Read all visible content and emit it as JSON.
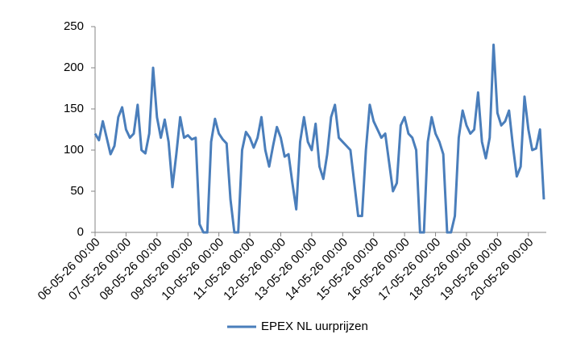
{
  "chart_data": {
    "type": "line",
    "categories": [
      "06-05-26 00:00",
      null,
      null,
      null,
      null,
      null,
      null,
      null,
      "07-05-26 00:00",
      null,
      null,
      null,
      null,
      null,
      null,
      null,
      "08-05-26 00:00",
      null,
      null,
      null,
      null,
      null,
      null,
      null,
      "09-05-26 00:00",
      null,
      null,
      null,
      null,
      null,
      null,
      null,
      "10-05-26 00:00",
      null,
      null,
      null,
      null,
      null,
      null,
      null,
      "11-05-26 00:00",
      null,
      null,
      null,
      null,
      null,
      null,
      null,
      "12-05-26 00:00",
      null,
      null,
      null,
      null,
      null,
      null,
      null,
      "13-05-26 00:00",
      null,
      null,
      null,
      null,
      null,
      null,
      null,
      "14-05-26 00:00",
      null,
      null,
      null,
      null,
      null,
      null,
      null,
      "15-05-26 00:00",
      null,
      null,
      null,
      null,
      null,
      null,
      null,
      "16-05-26 00:00",
      null,
      null,
      null,
      null,
      null,
      null,
      null,
      "17-05-26 00:00",
      null,
      null,
      null,
      null,
      null,
      null,
      null,
      "18-05-26 00:00",
      null,
      null,
      null,
      null,
      null,
      null,
      null,
      "19-05-26 00:00",
      null,
      null,
      null,
      null,
      null,
      null,
      null,
      "20-05-26 00:00",
      null,
      null,
      null,
      null
    ],
    "series": [
      {
        "name": "EPEX NL uurprijzen",
        "color": "#4a7ebb",
        "values": [
          120,
          112,
          135,
          115,
          95,
          105,
          140,
          152,
          125,
          115,
          120,
          155,
          100,
          96,
          120,
          200,
          140,
          115,
          137,
          110,
          55,
          95,
          140,
          115,
          118,
          113,
          115,
          10,
          0,
          0,
          110,
          138,
          120,
          113,
          108,
          40,
          0,
          0,
          100,
          122,
          115,
          103,
          115,
          140,
          100,
          80,
          105,
          128,
          115,
          92,
          95,
          60,
          28,
          110,
          140,
          110,
          100,
          132,
          80,
          65,
          95,
          140,
          155,
          115,
          110,
          105,
          100,
          60,
          20,
          20,
          100,
          155,
          135,
          125,
          115,
          120,
          85,
          50,
          60,
          130,
          140,
          120,
          115,
          100,
          0,
          0,
          110,
          140,
          120,
          110,
          95,
          0,
          0,
          20,
          115,
          148,
          130,
          120,
          125,
          170,
          110,
          90,
          115,
          228,
          145,
          130,
          135,
          148,
          105,
          68,
          80,
          165,
          125,
          100,
          102,
          125,
          40
        ]
      }
    ],
    "ylim": [
      0,
      250
    ],
    "yticks": [
      0,
      50,
      100,
      150,
      200,
      250
    ],
    "grid": false,
    "legend": "bottom"
  }
}
